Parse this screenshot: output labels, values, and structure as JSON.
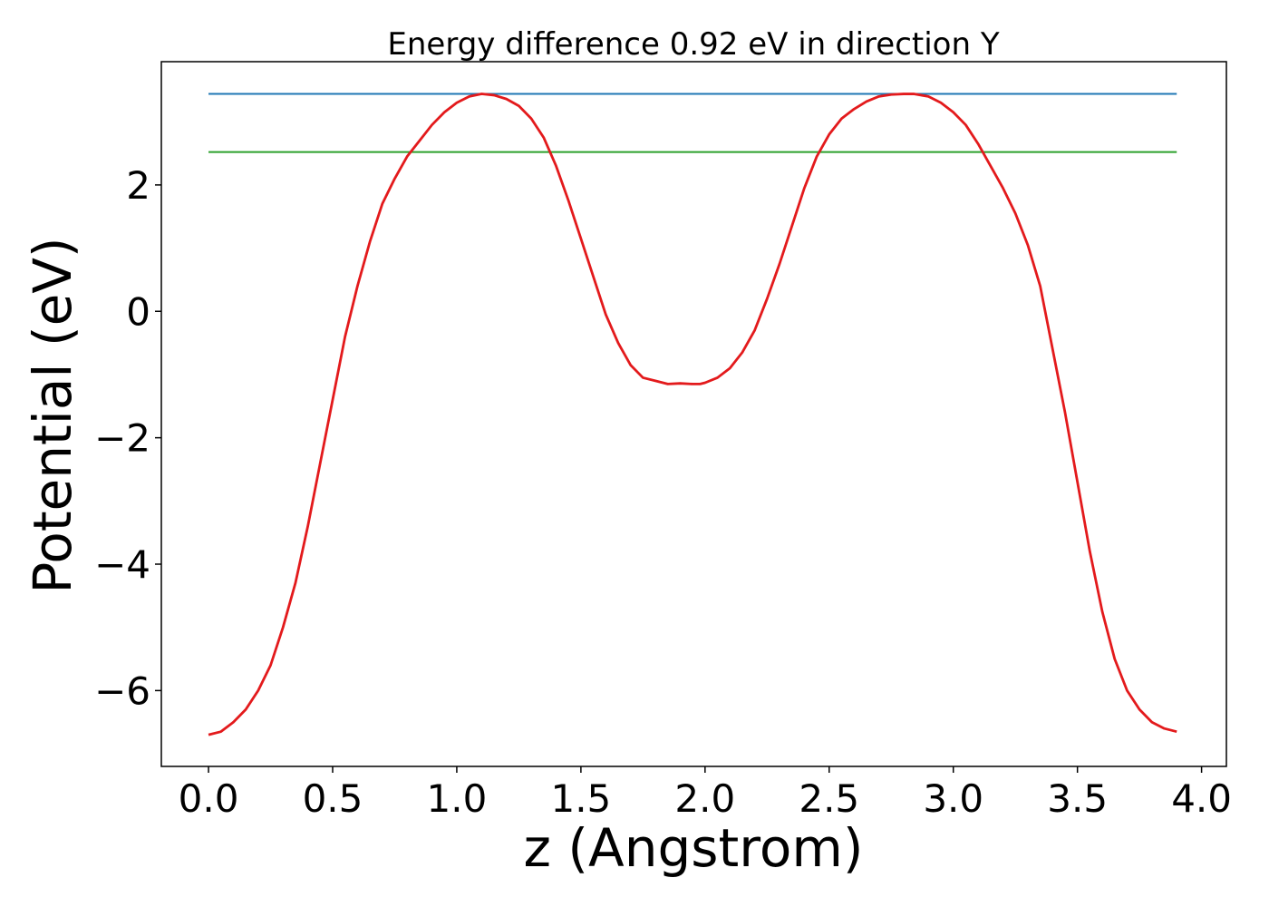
{
  "chart_data": {
    "type": "line",
    "title": "Energy difference 0.92 eV in direction Y",
    "xlabel": "z (Angstrom)",
    "ylabel": "Potential (eV)",
    "xlim": [
      -0.19,
      4.1
    ],
    "ylim": [
      -7.2,
      3.95
    ],
    "xticks": [
      0.0,
      0.5,
      1.0,
      1.5,
      2.0,
      2.5,
      3.0,
      3.5,
      4.0
    ],
    "xtick_labels": [
      "0.0",
      "0.5",
      "1.0",
      "1.5",
      "2.0",
      "2.5",
      "3.0",
      "3.5",
      "4.0"
    ],
    "yticks": [
      -6,
      -4,
      -2,
      0,
      2
    ],
    "ytick_labels": [
      "−6",
      "−4",
      "−2",
      "0",
      "2"
    ],
    "grid": false,
    "series": [
      {
        "color": "#1f77b4",
        "x": [
          0.0,
          3.9
        ],
        "y": [
          3.44,
          3.44
        ]
      },
      {
        "color": "#2ca02c",
        "x": [
          0.0,
          3.9
        ],
        "y": [
          2.52,
          2.52
        ]
      },
      {
        "color": "#e31a1c",
        "x": [
          0.0,
          0.05,
          0.1,
          0.15,
          0.2,
          0.25,
          0.3,
          0.35,
          0.4,
          0.45,
          0.5,
          0.55,
          0.6,
          0.65,
          0.7,
          0.75,
          0.8,
          0.85,
          0.9,
          0.95,
          1.0,
          1.05,
          1.1,
          1.15,
          1.2,
          1.25,
          1.3,
          1.35,
          1.4,
          1.45,
          1.5,
          1.55,
          1.6,
          1.65,
          1.7,
          1.75,
          1.8,
          1.85,
          1.9,
          1.95,
          1.98,
          2.0,
          2.05,
          2.1,
          2.15,
          2.2,
          2.25,
          2.3,
          2.35,
          2.4,
          2.45,
          2.5,
          2.55,
          2.6,
          2.65,
          2.7,
          2.75,
          2.8,
          2.84,
          2.9,
          2.95,
          3.0,
          3.05,
          3.1,
          3.15,
          3.2,
          3.25,
          3.3,
          3.35,
          3.4,
          3.45,
          3.5,
          3.55,
          3.6,
          3.65,
          3.7,
          3.75,
          3.8,
          3.85,
          3.9
        ],
        "y": [
          -6.7,
          -6.65,
          -6.5,
          -6.3,
          -6.0,
          -5.6,
          -5.0,
          -4.3,
          -3.4,
          -2.4,
          -1.4,
          -0.4,
          0.4,
          1.1,
          1.7,
          2.1,
          2.45,
          2.7,
          2.95,
          3.15,
          3.3,
          3.4,
          3.44,
          3.42,
          3.36,
          3.25,
          3.05,
          2.75,
          2.3,
          1.75,
          1.15,
          0.55,
          -0.05,
          -0.5,
          -0.85,
          -1.05,
          -1.1,
          -1.15,
          -1.14,
          -1.15,
          -1.15,
          -1.13,
          -1.05,
          -0.9,
          -0.65,
          -0.3,
          0.2,
          0.75,
          1.35,
          1.95,
          2.45,
          2.8,
          3.05,
          3.2,
          3.32,
          3.4,
          3.43,
          3.44,
          3.44,
          3.4,
          3.3,
          3.15,
          2.95,
          2.65,
          2.3,
          1.95,
          1.55,
          1.05,
          0.4,
          -0.6,
          -1.6,
          -2.7,
          -3.8,
          -4.75,
          -5.5,
          -6.0,
          -6.3,
          -6.5,
          -6.6,
          -6.65
        ]
      }
    ]
  }
}
